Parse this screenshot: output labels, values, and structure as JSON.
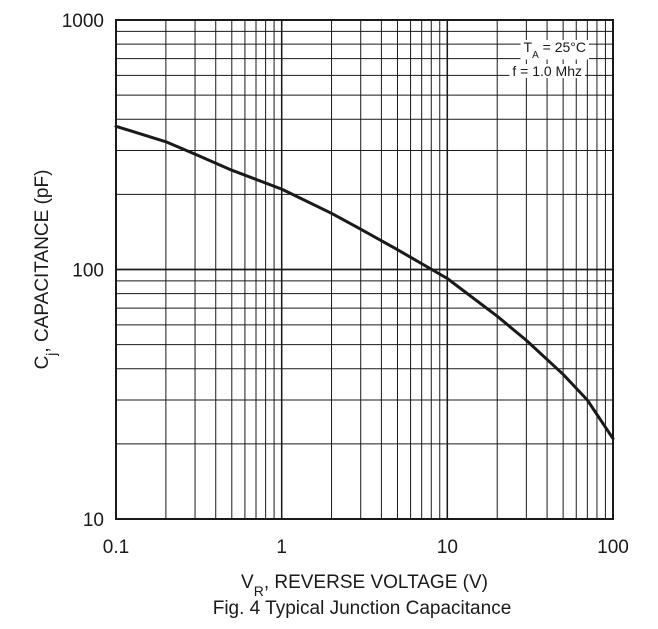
{
  "chart_data": {
    "type": "line",
    "title": "Fig. 4  Typical Junction Capacitance",
    "xlabel": {
      "main": "V",
      "sub": "R",
      "rest": ", REVERSE VOLTAGE (V)"
    },
    "ylabel": {
      "main": "C",
      "sub": "j",
      "rest": ", CAPACITANCE (pF)"
    },
    "xscale": "log",
    "yscale": "log",
    "xlim": [
      0.1,
      100
    ],
    "ylim": [
      10,
      1000
    ],
    "x_tick_labels": [
      "0.1",
      "1",
      "10",
      "100"
    ],
    "y_tick_labels": [
      "10",
      "100",
      "1000"
    ],
    "grid": true,
    "annotations": [
      {
        "main": "T",
        "sub": "A",
        "rest": " = 25°C"
      },
      {
        "main": "f = 1.0 Mhz",
        "sub": "",
        "rest": ""
      }
    ],
    "series": [
      {
        "x": [
          0.1,
          0.2,
          0.3,
          0.5,
          1,
          2,
          3,
          5,
          10,
          20,
          30,
          50,
          70,
          100
        ],
        "y": [
          375,
          325,
          290,
          250,
          210,
          168,
          145,
          120,
          92,
          65,
          52,
          38,
          30,
          21
        ]
      }
    ]
  }
}
